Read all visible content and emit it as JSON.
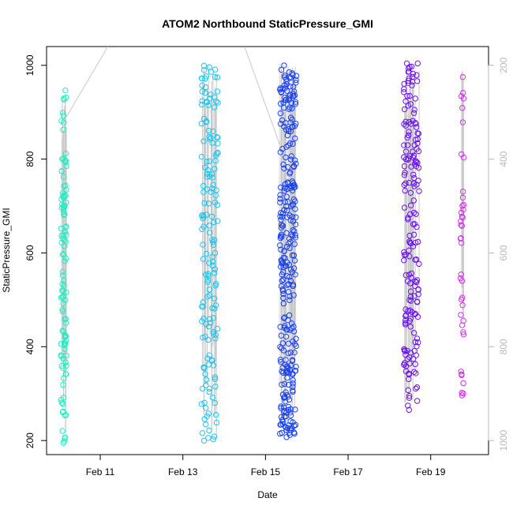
{
  "chart_data": {
    "type": "scatter",
    "title": "ATOM2 Northbound StaticPressure_GMI",
    "xlabel": "Date",
    "ylabel": "StaticPressure_GMI",
    "xlim_days": [
      9.7,
      20.4
    ],
    "ylim": [
      170,
      1040
    ],
    "x_tick_labels": [
      "Feb 11",
      "Feb 13",
      "Feb 15",
      "Feb 17",
      "Feb 19"
    ],
    "x_tick_days": [
      11,
      13,
      15,
      17,
      19
    ],
    "y_ticks": [
      200,
      400,
      600,
      800,
      1000
    ],
    "y_ticks_right_altitude": [
      200,
      400,
      600,
      800,
      1000
    ],
    "right_axis_range": [
      1030,
      160
    ],
    "flight_path_gray": "#c8c8c8",
    "clusters": [
      {
        "day_start": 10.05,
        "day_end": 10.18,
        "p_min": 188,
        "p_max": 950,
        "color": "#19f0c0",
        "count": 110
      },
      {
        "day_start": 13.45,
        "day_end": 13.85,
        "p_min": 195,
        "p_max": 1005,
        "color": "#19c4f2",
        "count": 160
      },
      {
        "day_start": 15.35,
        "day_end": 15.75,
        "p_min": 205,
        "p_max": 1003,
        "color": "#1a40f5",
        "count": 300
      },
      {
        "day_start": 18.35,
        "day_end": 18.72,
        "p_min": 262,
        "p_max": 1008,
        "color": "#6a10f0",
        "count": 180
      },
      {
        "day_start": 19.72,
        "day_end": 19.8,
        "p_min": 288,
        "p_max": 990,
        "color": "#d030e8",
        "count": 40
      }
    ],
    "connector_lines": [
      {
        "x": [
          10.18,
          11.25
        ],
        "y": [
          890,
          1050
        ]
      },
      {
        "x": [
          14.45,
          15.35
        ],
        "y": [
          1050,
          830
        ]
      }
    ]
  }
}
